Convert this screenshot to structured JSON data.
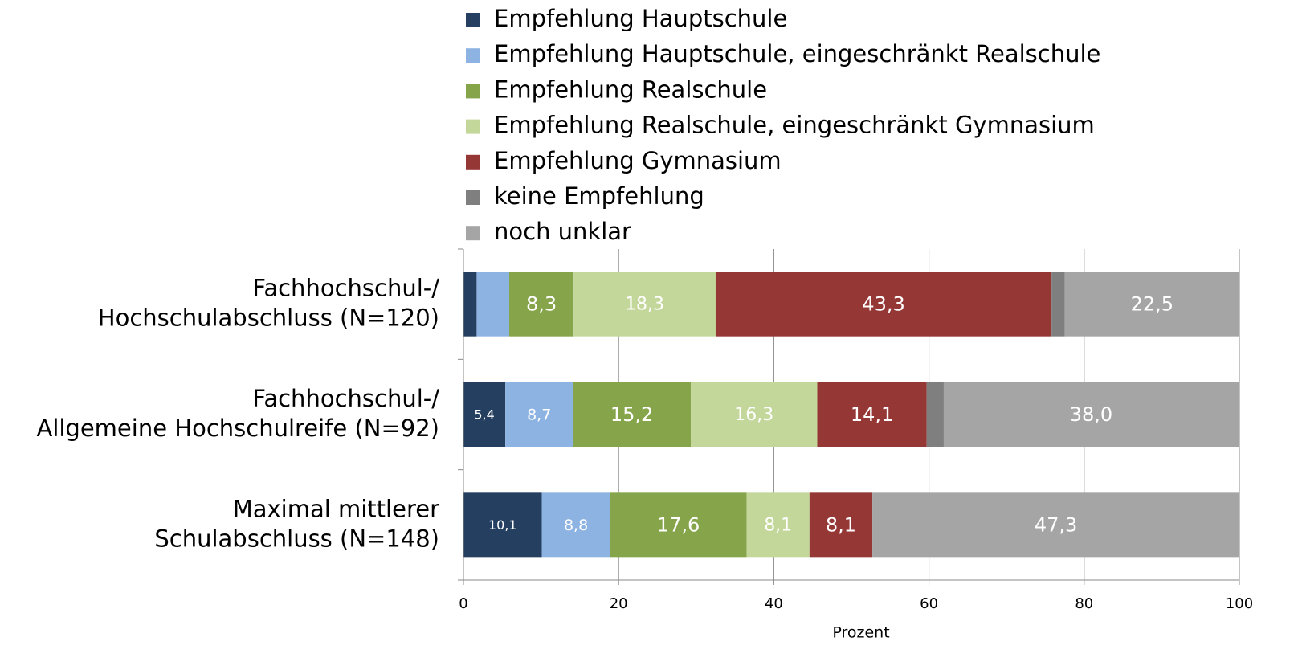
{
  "chart_data": {
    "type": "stacked-barh",
    "categories": [
      [
        "Fachhochschul-/",
        "Hochschulabschluss (N=120)"
      ],
      [
        "Fachhochschul-/",
        "Allgemeine Hochschulreife (N=92)"
      ],
      [
        "Maximal mittlerer",
        "Schulabschluss (N=148)"
      ]
    ],
    "series": [
      {
        "name": "Empfehlung Hauptschule",
        "color": "#243f60",
        "values": [
          1.7,
          5.4,
          10.1
        ],
        "value_labels": [
          null,
          "5,4",
          "10,1"
        ]
      },
      {
        "name": "Empfehlung Hauptschule, eingeschränkt Realschule",
        "color": "#8db3e2",
        "values": [
          4.2,
          8.7,
          8.8
        ],
        "value_labels": [
          null,
          "8,7",
          "8,8"
        ]
      },
      {
        "name": "Empfehlung Realschule",
        "color": "#86a44a",
        "values": [
          8.3,
          15.2,
          17.6
        ],
        "value_labels": [
          "8,3",
          "15,2",
          "17,6"
        ]
      },
      {
        "name": "Empfehlung Realschule, eingeschränkt Gymnasium",
        "color": "#c4d79b",
        "values": [
          18.3,
          16.3,
          8.1
        ],
        "value_labels": [
          "18,3",
          "16,3",
          "8,1"
        ]
      },
      {
        "name": "Empfehlung Gymnasium",
        "color": "#953735",
        "values": [
          43.3,
          14.1,
          8.1
        ],
        "value_labels": [
          "43,3",
          "14,1",
          "8,1"
        ]
      },
      {
        "name": "keine Empfehlung",
        "color": "#7f7f7f",
        "values": [
          1.7,
          2.2,
          0
        ],
        "value_labels": [
          null,
          null,
          null
        ]
      },
      {
        "name": "noch unklar",
        "color": "#a5a5a5",
        "values": [
          22.5,
          38.0,
          47.3
        ],
        "value_labels": [
          "22,5",
          "38,0",
          "47,3"
        ]
      }
    ],
    "xlim": [
      0,
      100
    ],
    "xticks": [
      0,
      20,
      40,
      60,
      80,
      100
    ],
    "xlabel": "Prozent",
    "grid": true,
    "legend": "top"
  }
}
